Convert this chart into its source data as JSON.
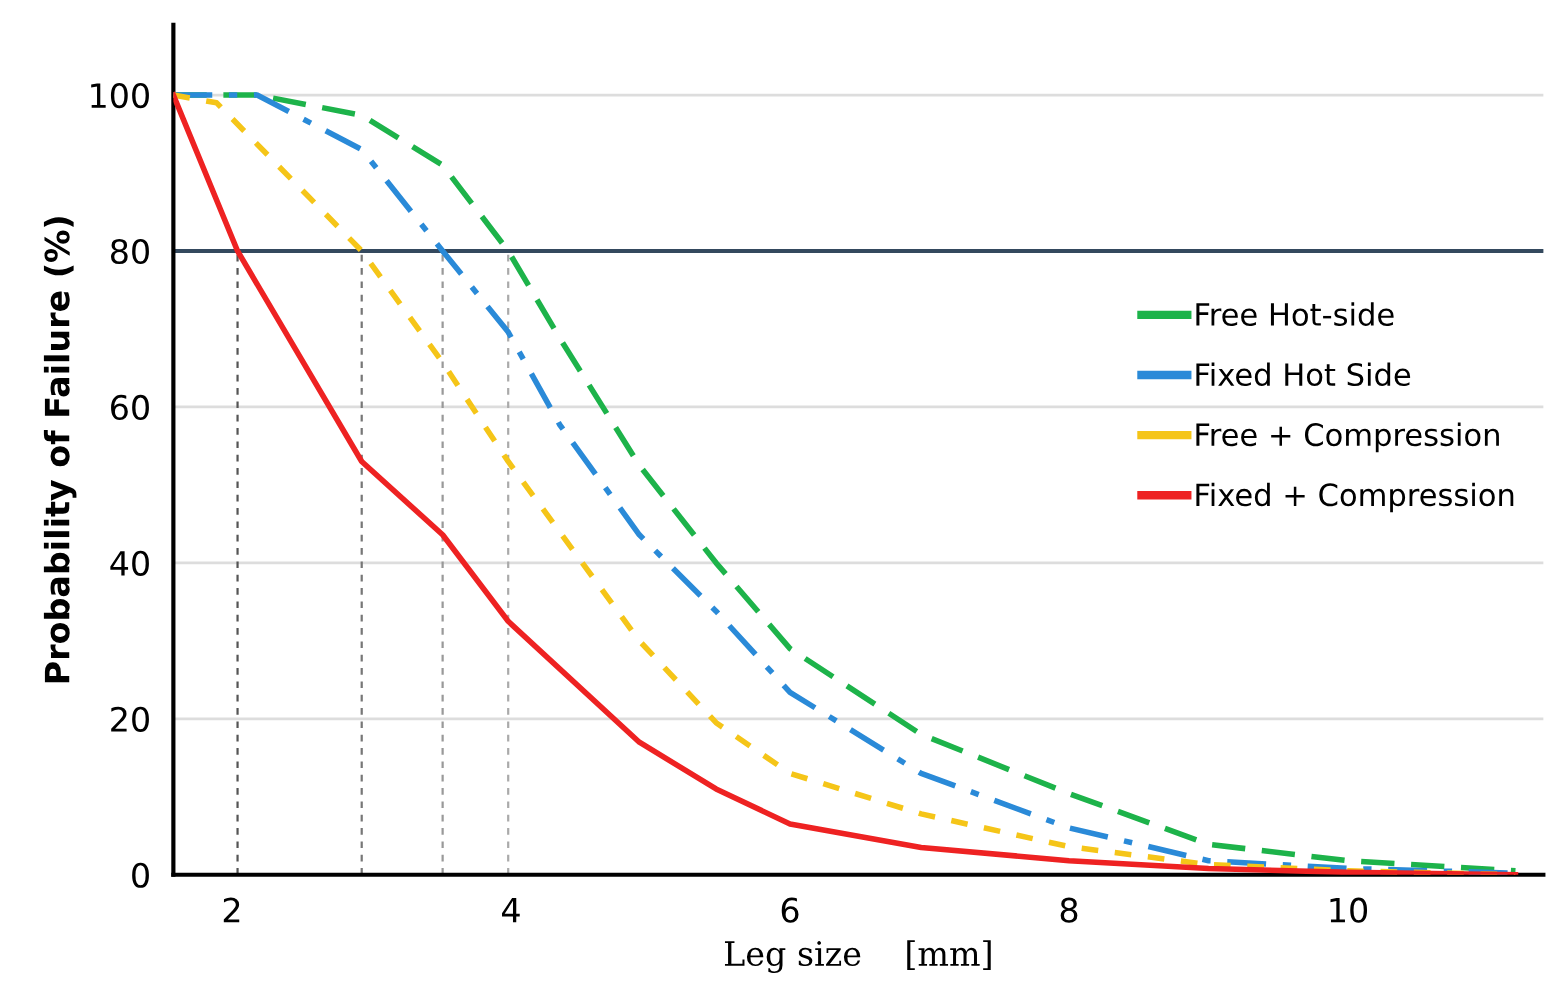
{
  "chart_data": {
    "type": "line",
    "xlabel": "Leg size    [mm]",
    "ylabel": "Probability of Failure (%)",
    "xlim": [
      1.58,
      11.4
    ],
    "xticks": [
      2,
      4,
      6,
      8,
      10
    ],
    "ylim": [
      0,
      109
    ],
    "yticks": [
      0,
      20,
      40,
      60,
      80,
      100
    ],
    "grid": "y",
    "legend": "right",
    "marker": "none",
    "ref_lines": [
      {
        "axis": "y",
        "value": 80,
        "color": "#34495e",
        "line_style": "solid"
      },
      {
        "axis": "x",
        "value": 2.04,
        "color": "#555555",
        "line_style": "dotted"
      },
      {
        "axis": "x",
        "value": 2.93,
        "color": "#777777",
        "line_style": "dotted"
      },
      {
        "axis": "x",
        "value": 3.51,
        "color": "#999999",
        "line_style": "dotted"
      },
      {
        "axis": "x",
        "value": 3.98,
        "color": "#aaaaaa",
        "line_style": "dotted"
      }
    ],
    "series": [
      {
        "name": "Free Hot-side",
        "color": "#1db34a",
        "line_style": "dashed",
        "x": [
          1.58,
          2.18,
          2.93,
          3.51,
          3.98,
          4.35,
          4.92,
          5.47,
          6,
          6.94,
          8,
          9,
          10,
          11.2
        ],
        "values": [
          100,
          100,
          97.4,
          91,
          80,
          68.8,
          52.5,
          40,
          29,
          18,
          10.4,
          3.9,
          1.8,
          0.5
        ]
      },
      {
        "name": "Fixed Hot Side",
        "color": "#2a8ad8",
        "line_style": "dashdot",
        "x": [
          1.58,
          2.18,
          2.93,
          3.51,
          3.98,
          4.35,
          4.92,
          5.47,
          6,
          6.94,
          8,
          9,
          10,
          11.2
        ],
        "values": [
          100,
          100,
          93,
          80,
          69.6,
          57.7,
          43.6,
          33.8,
          23.4,
          13,
          6,
          1.8,
          0.8,
          0.2
        ]
      },
      {
        "name": "Free + Compression",
        "color": "#f5c518",
        "line_style": "dotted",
        "x": [
          1.58,
          1.89,
          2.93,
          3.51,
          3.98,
          4.92,
          5.47,
          6,
          6.94,
          8,
          9,
          10,
          11.2
        ],
        "values": [
          100,
          99,
          80,
          65.7,
          53,
          30,
          19.5,
          13,
          7.8,
          3.6,
          1.3,
          0.5,
          0
        ]
      },
      {
        "name": "Fixed + Compression",
        "color": "#ee2222",
        "line_style": "solid",
        "x": [
          1.58,
          2.04,
          2.93,
          3.51,
          3.98,
          4.92,
          5.47,
          6,
          6.94,
          8,
          9,
          10,
          11.2
        ],
        "values": [
          100,
          80,
          53,
          43.6,
          32.5,
          17,
          11,
          6.5,
          3.5,
          1.8,
          0.8,
          0.3,
          0
        ]
      }
    ]
  }
}
